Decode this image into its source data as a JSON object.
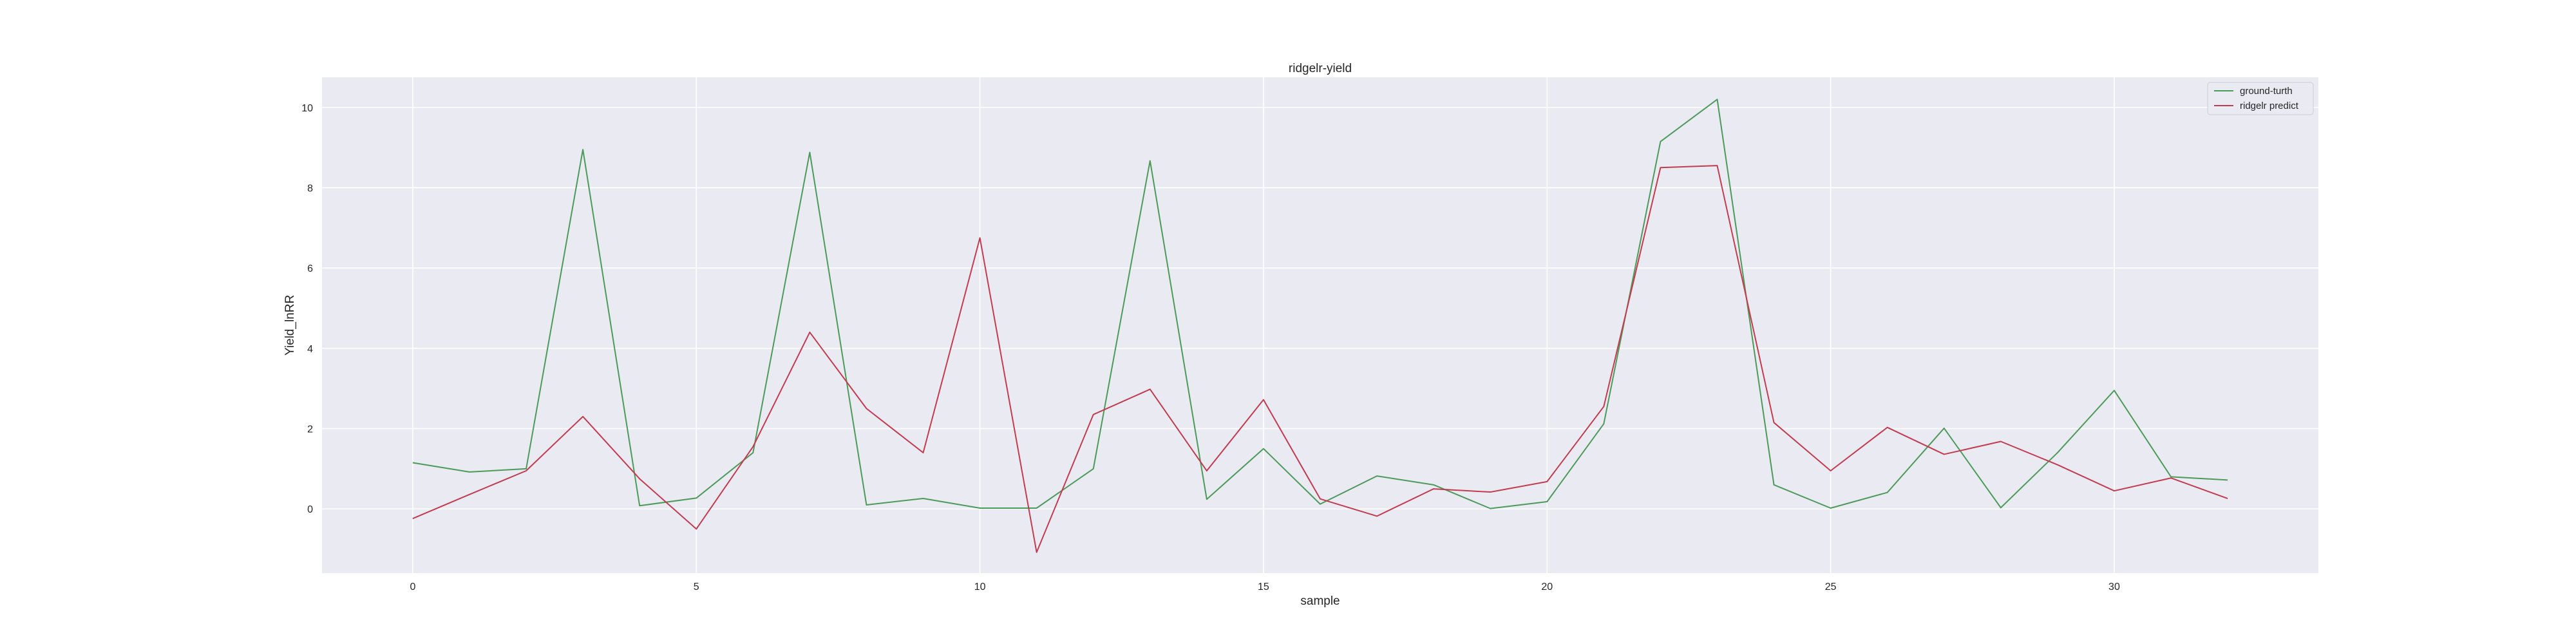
{
  "chart_data": {
    "type": "line",
    "title": "ridgelr-yield",
    "xlabel": "sample",
    "ylabel": "Yield_lnRR",
    "xlim": [
      -1.6,
      33.6
    ],
    "ylim": [
      -1.6,
      10.75
    ],
    "x_ticks": [
      0,
      5,
      10,
      15,
      20,
      25,
      30
    ],
    "y_ticks": [
      0,
      2,
      4,
      6,
      8,
      10
    ],
    "grid": true,
    "legend_position": "top-right",
    "x": [
      0,
      1,
      2,
      3,
      4,
      5,
      6,
      7,
      8,
      9,
      10,
      11,
      12,
      13,
      14,
      15,
      16,
      17,
      18,
      19,
      20,
      21,
      22,
      23,
      24,
      25,
      26,
      27,
      28,
      29,
      30,
      31,
      32
    ],
    "series": [
      {
        "name": "ground-turth",
        "color": "#4c9a5a",
        "values": [
          1.15,
          0.92,
          1.0,
          8.95,
          0.08,
          0.27,
          1.4,
          8.88,
          0.1,
          0.26,
          0.02,
          0.02,
          1.0,
          8.67,
          0.24,
          1.5,
          0.12,
          0.82,
          0.6,
          0.01,
          0.18,
          2.12,
          9.15,
          10.2,
          0.6,
          0.02,
          0.41,
          2.01,
          0.03,
          1.4,
          2.95,
          0.8,
          0.72
        ]
      },
      {
        "name": "ridgelr predict",
        "color": "#c23b4e",
        "values": [
          -0.24,
          0.36,
          0.95,
          2.3,
          0.75,
          -0.5,
          1.55,
          4.4,
          2.5,
          1.4,
          6.75,
          -1.08,
          2.35,
          2.98,
          0.95,
          2.72,
          0.25,
          -0.18,
          0.5,
          0.42,
          0.68,
          2.55,
          8.5,
          8.55,
          2.15,
          0.95,
          2.03,
          1.36,
          1.68,
          1.1,
          0.45,
          0.77,
          0.26
        ]
      }
    ]
  }
}
